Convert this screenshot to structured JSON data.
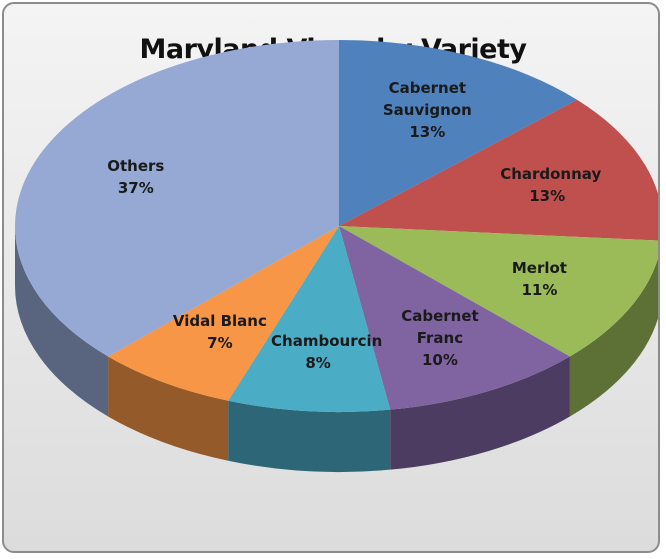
{
  "chart_data": {
    "type": "pie",
    "title": "Maryland Vines by Variety",
    "categories": [
      "Cabernet Sauvignon",
      "Chardonnay",
      "Merlot",
      "Cabernet Franc",
      "Chambourcin",
      "Vidal Blanc",
      "Others"
    ],
    "values": [
      13,
      13,
      11,
      10,
      8,
      7,
      37
    ],
    "value_labels": [
      "13%",
      "13%",
      "11%",
      "10%",
      "8%",
      "7%",
      "37%"
    ],
    "colors": [
      "#4f81bd",
      "#c0504d",
      "#9bbb59",
      "#8064a2",
      "#4bacc6",
      "#f79646",
      "#95a9d4"
    ]
  }
}
